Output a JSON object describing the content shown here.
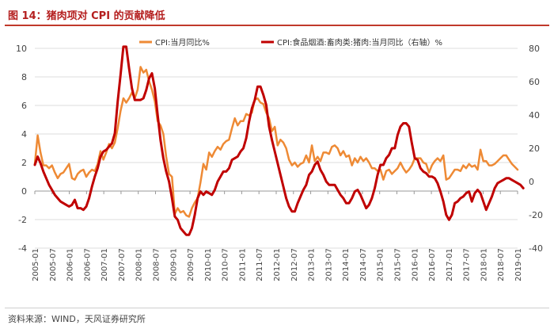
{
  "chart_data": {
    "type": "line",
    "title": "图 14：猪肉项对 CPI 的贡献降低",
    "source": "资料来源：WIND，天风证券研究所",
    "left_axis": {
      "min": -4,
      "max": 10,
      "ticks": [
        -4,
        -2,
        0,
        2,
        4,
        6,
        8,
        10
      ]
    },
    "right_axis": {
      "min": -40,
      "max": 80,
      "ticks": [
        -40,
        -20,
        0,
        20,
        40,
        60,
        80
      ]
    },
    "x_tick_labels": [
      "2005-01",
      "2005-07",
      "2006-01",
      "2006-07",
      "2007-01",
      "2007-07",
      "2008-01",
      "2008-07",
      "2009-01",
      "2009-07",
      "2010-01",
      "2010-07",
      "2011-01",
      "2011-07",
      "2012-01",
      "2012-07",
      "2013-01",
      "2013-07",
      "2014-01",
      "2014-07",
      "2015-01",
      "2015-07",
      "2016-01",
      "2016-07",
      "2017-01",
      "2017-07",
      "2018-01",
      "2018-07",
      "2019-01"
    ],
    "series": [
      {
        "name": "CPI:当月同比%",
        "axis": "left",
        "color": "#ee8a35",
        "values": [
          1.9,
          3.9,
          2.7,
          1.8,
          1.8,
          1.6,
          1.8,
          1.3,
          0.9,
          1.2,
          1.3,
          1.6,
          1.9,
          0.9,
          0.8,
          1.2,
          1.4,
          1.5,
          1.0,
          1.3,
          1.5,
          1.4,
          1.9,
          2.8,
          2.2,
          2.7,
          3.3,
          3.0,
          3.4,
          4.4,
          5.6,
          6.5,
          6.2,
          6.5,
          6.9,
          6.5,
          7.1,
          8.7,
          8.3,
          8.5,
          7.7,
          7.1,
          6.3,
          4.9,
          4.6,
          4.0,
          2.4,
          1.2,
          1.0,
          -1.6,
          -1.2,
          -1.5,
          -1.4,
          -1.7,
          -1.8,
          -1.2,
          -0.8,
          -0.5,
          0.6,
          1.9,
          1.5,
          2.7,
          2.4,
          2.8,
          3.1,
          2.9,
          3.3,
          3.5,
          3.6,
          4.4,
          5.1,
          4.6,
          4.9,
          4.9,
          5.4,
          5.3,
          5.5,
          6.4,
          6.5,
          6.2,
          6.1,
          5.5,
          5.1,
          4.2,
          4.5,
          3.2,
          3.6,
          3.4,
          3.0,
          2.2,
          1.8,
          2.0,
          1.7,
          1.9,
          2.0,
          2.5,
          2.0,
          3.2,
          2.1,
          2.4,
          2.1,
          2.7,
          2.7,
          2.6,
          3.1,
          3.2,
          3.0,
          2.5,
          2.8,
          2.4,
          2.5,
          1.8,
          2.3,
          2.0,
          2.4,
          2.1,
          2.3,
          2.0,
          1.6,
          1.6,
          1.4,
          1.5,
          0.8,
          1.4,
          1.5,
          1.2,
          1.4,
          1.6,
          2.0,
          1.6,
          1.3,
          1.5,
          1.8,
          2.3,
          2.3,
          2.3,
          2.0,
          1.9,
          1.3,
          1.8,
          2.1,
          2.3,
          2.1,
          2.5,
          0.8,
          0.9,
          1.2,
          1.5,
          1.5,
          1.4,
          1.8,
          1.6,
          1.9,
          1.7,
          1.8,
          1.5,
          2.9,
          2.1,
          2.1,
          1.8,
          1.8,
          1.9,
          2.1,
          2.3,
          2.5,
          2.5,
          2.2,
          1.9,
          1.7,
          1.5
        ]
      },
      {
        "name": "CPI:食品烟酒:畜肉类:猪肉:当月同比（右轴）%",
        "axis": "right",
        "color": "#c00000",
        "values": [
          10,
          15,
          11,
          6,
          2,
          -2,
          -5,
          -8,
          -10,
          -12,
          -13,
          -14,
          -15,
          -14,
          -11,
          -16,
          -16,
          -17,
          -15,
          -10,
          -3,
          3,
          8,
          15,
          18,
          19,
          21,
          23,
          29,
          48,
          64,
          81,
          81,
          68,
          56,
          49,
          49,
          49,
          50,
          55,
          62,
          65,
          56,
          40,
          25,
          14,
          6,
          0,
          -10,
          -21,
          -23,
          -28,
          -30,
          -32,
          -32,
          -28,
          -20,
          -10,
          -6,
          -8,
          -6,
          -7,
          -8,
          -5,
          0,
          3,
          6,
          6,
          8,
          13,
          14,
          15,
          18,
          20,
          26,
          36,
          44,
          49,
          57,
          57,
          52,
          46,
          33,
          25,
          18,
          11,
          4,
          -3,
          -10,
          -15,
          -18,
          -18,
          -13,
          -9,
          -5,
          -2,
          4,
          6,
          10,
          12,
          7,
          4,
          0,
          -2,
          -2,
          -2,
          -5,
          -8,
          -10,
          -13,
          -13,
          -10,
          -6,
          -5,
          -8,
          -12,
          -16,
          -14,
          -10,
          -4,
          4,
          10,
          10,
          14,
          16,
          20,
          20,
          28,
          33,
          35,
          35,
          33,
          23,
          14,
          13,
          8,
          6,
          5,
          3,
          3,
          2,
          -1,
          -6,
          -12,
          -20,
          -23,
          -20,
          -13,
          -12,
          -10,
          -9,
          -7,
          -6,
          -12,
          -7,
          -5,
          -7,
          -12,
          -17,
          -13,
          -9,
          -4,
          -1,
          0,
          1,
          2,
          2,
          1,
          0,
          -1,
          -2,
          -4
        ]
      }
    ]
  }
}
